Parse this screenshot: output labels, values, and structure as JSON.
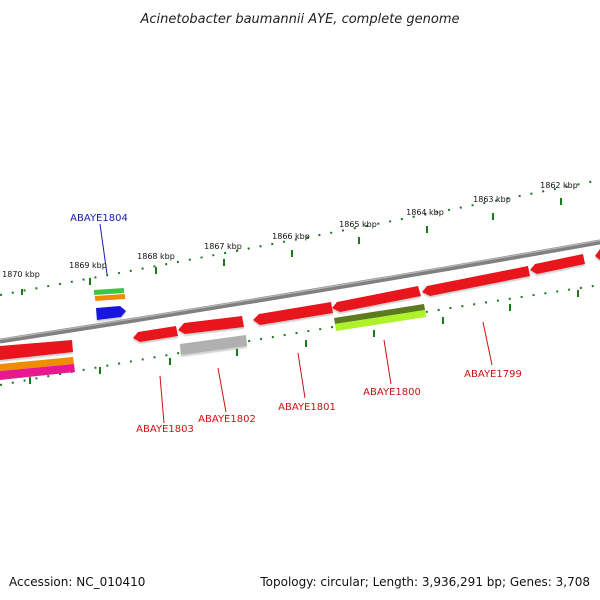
{
  "title": "Acinetobacter baumannii AYE, complete genome",
  "footer": {
    "accession": "Accession: NC_010410",
    "topology": "Topology: circular; Length: 3,936,291 bp; Genes: 3,708"
  },
  "colors": {
    "backbone": "#808080",
    "tick": "#1a7a1a",
    "gene_red": "#e8161c",
    "label_red": "#cc1111",
    "label_blue": "#1a1ab0"
  },
  "kbp_ticks": [
    "1870 kbp",
    "1869 kbp",
    "1868 kbp",
    "1867 kbp",
    "1866 kbp",
    "1865 kbp",
    "1864 kbp",
    "1863 kbp",
    "1862 kbp"
  ],
  "gene_labels": {
    "g1804": "ABAYE1804",
    "g1803": "ABAYE1803",
    "g1802": "ABAYE1802",
    "g1801": "ABAYE1801",
    "g1800": "ABAYE1800",
    "g1799": "ABAYE1799"
  }
}
